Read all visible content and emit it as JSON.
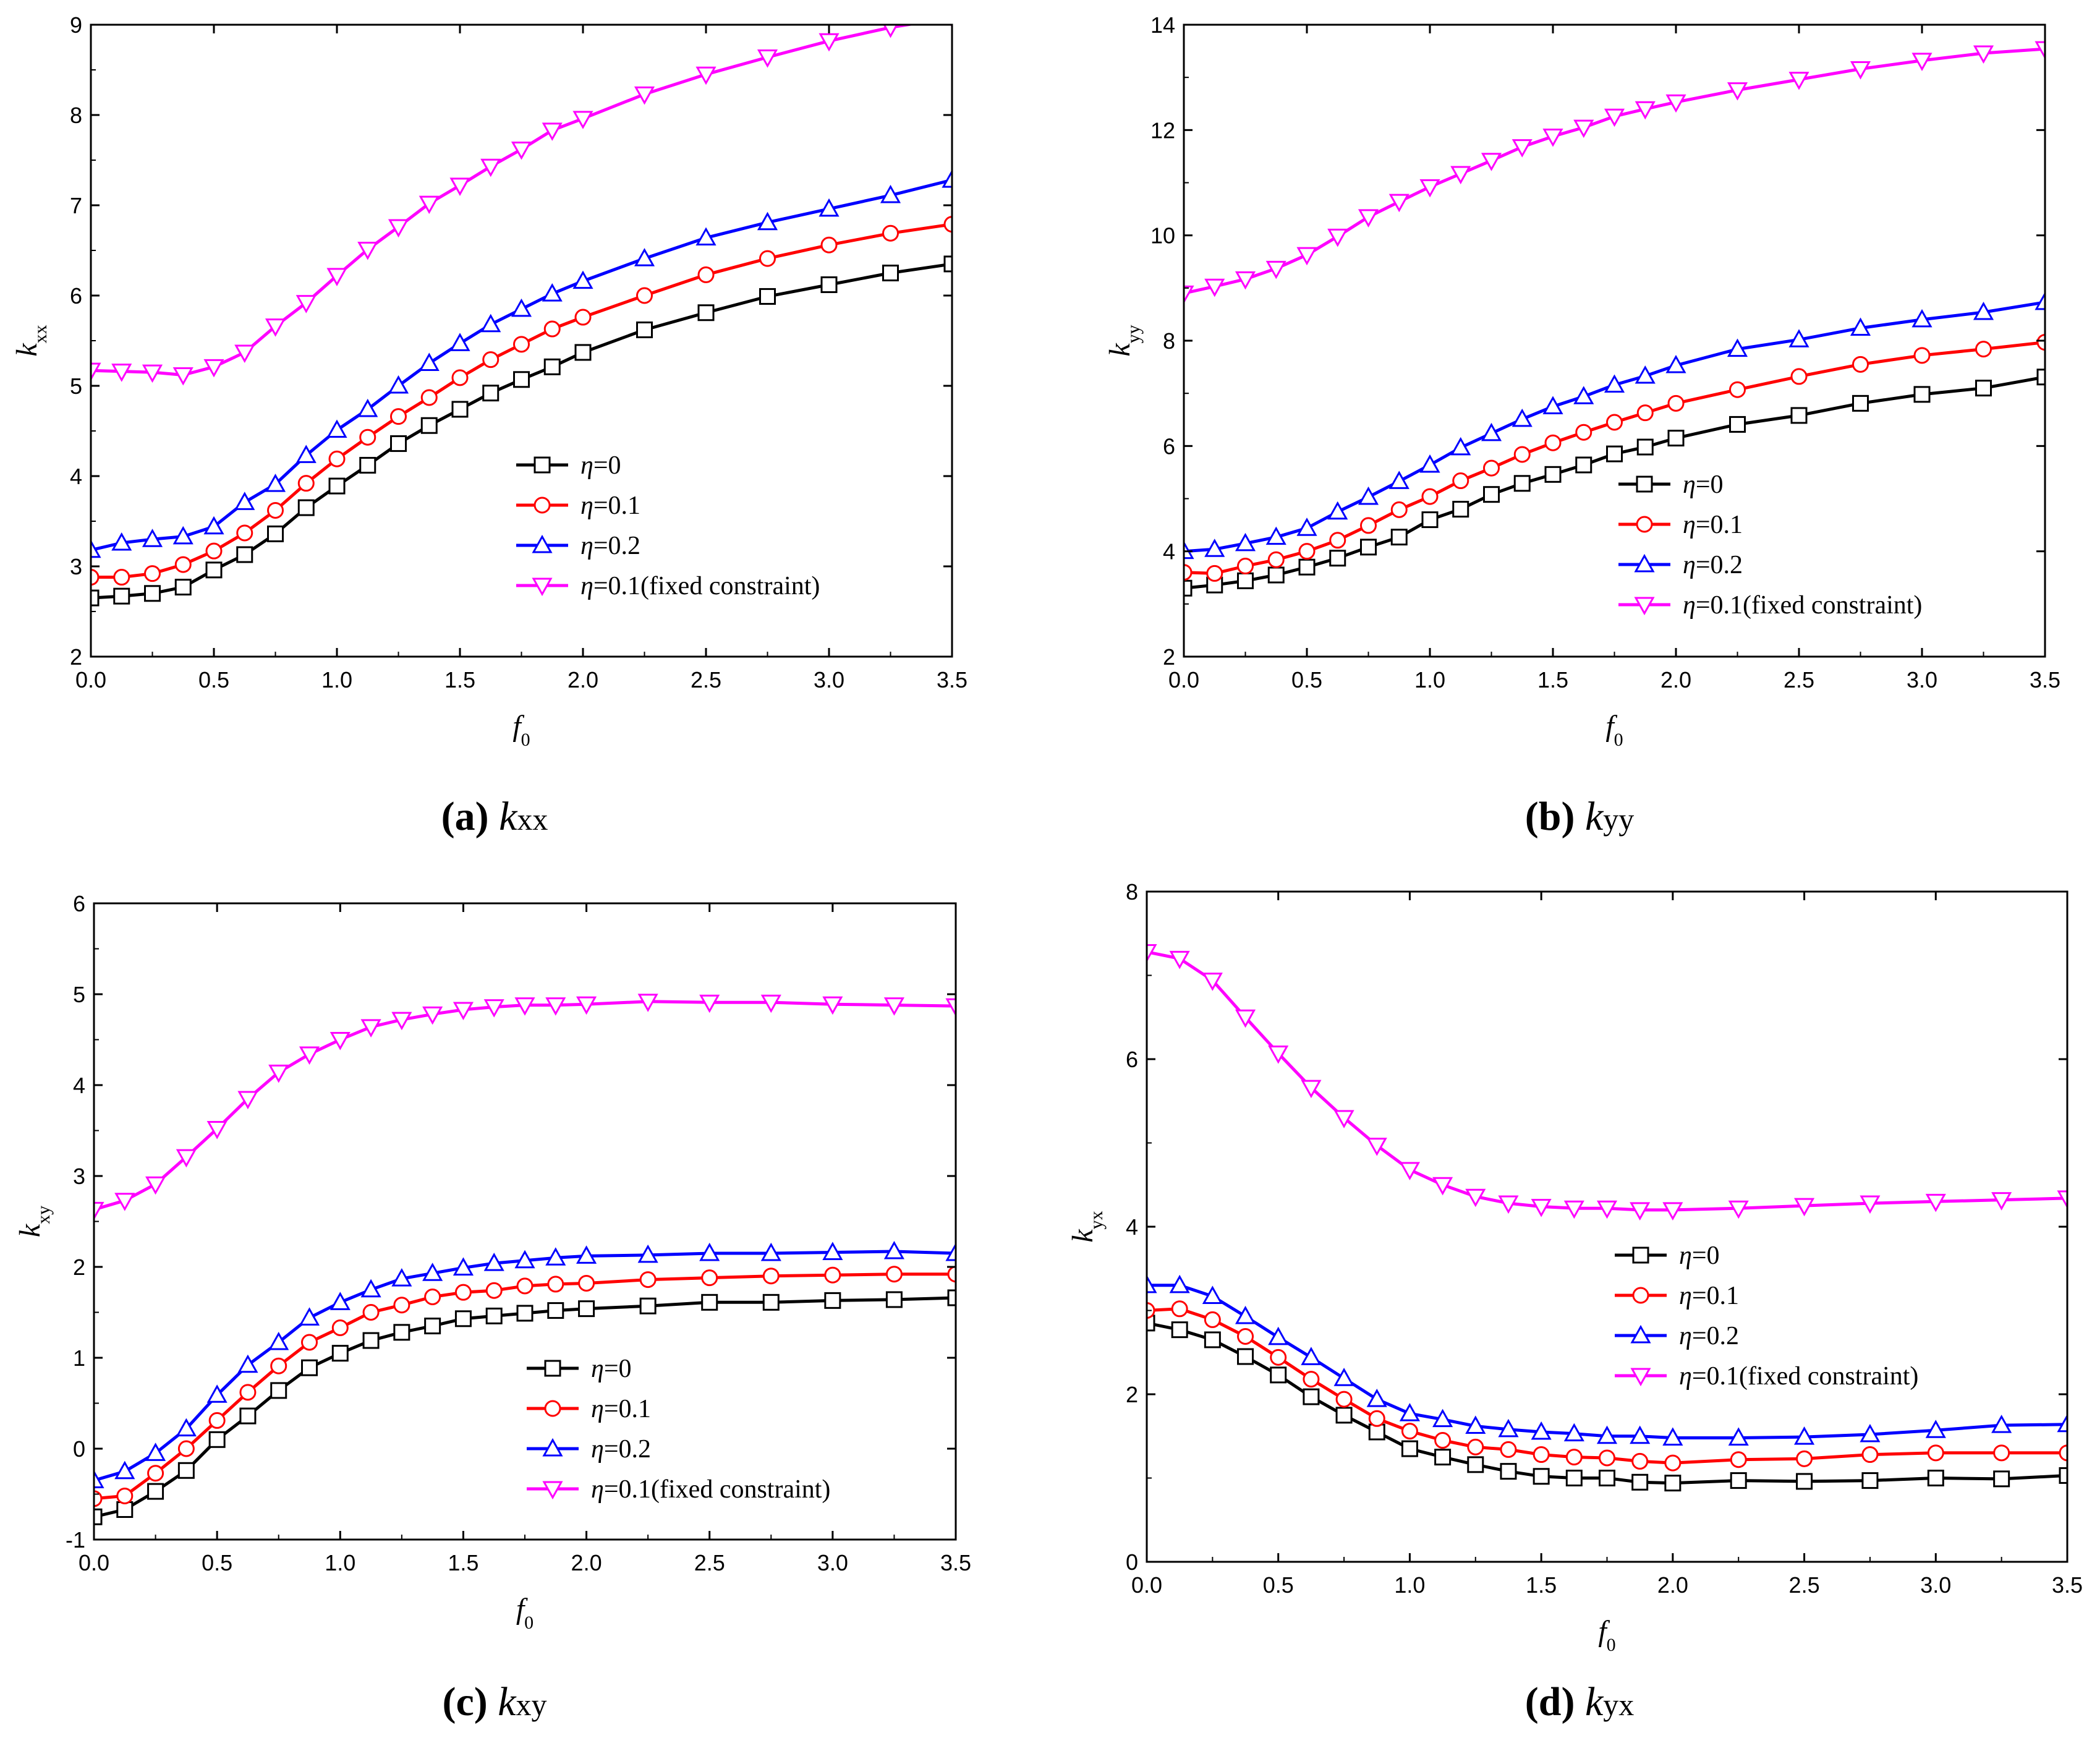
{
  "figure": {
    "legend_symbol": "η",
    "legend_labels": [
      "=0",
      "=0.1",
      "=0.2",
      "=0.1(fixed constraint)"
    ],
    "series_colors": [
      "#000000",
      "#ff0000",
      "#0000ff",
      "#ff00ff"
    ],
    "marker_types": [
      "square",
      "circle",
      "triangle-up",
      "triangle-down"
    ]
  },
  "chart_data": [
    {
      "type": "line",
      "panel": "(a)",
      "caption_letter": "(a)",
      "caption_symbol": "k",
      "caption_sub": "xx",
      "xlabel": "f",
      "xlabel_sub": "0",
      "ylabel": "k",
      "ylabel_sub": "xx",
      "xlim": [
        0,
        3.5
      ],
      "ylim": [
        2,
        9
      ],
      "xticks": [
        0.0,
        0.5,
        1.0,
        1.5,
        2.0,
        2.5,
        3.0,
        3.5
      ],
      "xtick_labels": [
        "0.0",
        "0.5",
        "1.0",
        "1.5",
        "2.0",
        "2.5",
        "3.0",
        "3.5"
      ],
      "yticks": [
        2,
        3,
        4,
        5,
        6,
        7,
        8,
        9
      ],
      "ytick_labels": [
        "2",
        "3",
        "4",
        "5",
        "6",
        "7",
        "8",
        "9"
      ],
      "legend_position": "lower-right",
      "x": [
        0.0,
        0.125,
        0.25,
        0.375,
        0.5,
        0.625,
        0.75,
        0.875,
        1.0,
        1.125,
        1.25,
        1.375,
        1.5,
        1.625,
        1.75,
        1.875,
        2.0,
        2.25,
        2.5,
        2.75,
        3.0,
        3.25,
        3.5
      ],
      "series": [
        {
          "name": "η=0",
          "values": [
            2.65,
            2.67,
            2.7,
            2.77,
            2.96,
            3.13,
            3.36,
            3.65,
            3.89,
            4.12,
            4.36,
            4.56,
            4.74,
            4.92,
            5.07,
            5.21,
            5.37,
            5.62,
            5.81,
            5.99,
            6.12,
            6.25,
            6.35
          ]
        },
        {
          "name": "η=0.1",
          "values": [
            2.88,
            2.88,
            2.92,
            3.02,
            3.17,
            3.37,
            3.62,
            3.92,
            4.19,
            4.43,
            4.66,
            4.87,
            5.09,
            5.29,
            5.46,
            5.63,
            5.76,
            6.0,
            6.23,
            6.41,
            6.56,
            6.69,
            6.79
          ]
        },
        {
          "name": "η=0.2",
          "values": [
            3.18,
            3.26,
            3.3,
            3.33,
            3.44,
            3.71,
            3.91,
            4.23,
            4.51,
            4.74,
            5.0,
            5.25,
            5.47,
            5.68,
            5.85,
            6.02,
            6.16,
            6.41,
            6.64,
            6.81,
            6.96,
            7.11,
            7.28
          ]
        },
        {
          "name": "η=0.1(fixed constraint)",
          "values": [
            5.17,
            5.16,
            5.15,
            5.12,
            5.21,
            5.37,
            5.66,
            5.92,
            6.22,
            6.51,
            6.76,
            7.02,
            7.22,
            7.43,
            7.62,
            7.83,
            7.96,
            8.23,
            8.45,
            8.64,
            8.82,
            8.97,
            9.08
          ]
        }
      ]
    },
    {
      "type": "line",
      "panel": "(b)",
      "caption_letter": "(b)",
      "caption_symbol": "k",
      "caption_sub": "yy",
      "xlabel": "f",
      "xlabel_sub": "0",
      "ylabel": "k",
      "ylabel_sub": "yy",
      "xlim": [
        0,
        3.5
      ],
      "ylim": [
        2,
        14
      ],
      "xticks": [
        0.0,
        0.5,
        1.0,
        1.5,
        2.0,
        2.5,
        3.0,
        3.5
      ],
      "xtick_labels": [
        "0.0",
        "0.5",
        "1.0",
        "1.5",
        "2.0",
        "2.5",
        "3.0",
        "3.5"
      ],
      "yticks": [
        2,
        4,
        6,
        8,
        10,
        12,
        14
      ],
      "ytick_labels": [
        "2",
        "4",
        "6",
        "8",
        "10",
        "12",
        "14"
      ],
      "legend_position": "lower-right",
      "x": [
        0.0,
        0.125,
        0.25,
        0.375,
        0.5,
        0.625,
        0.75,
        0.875,
        1.0,
        1.125,
        1.25,
        1.375,
        1.5,
        1.625,
        1.75,
        1.875,
        2.0,
        2.25,
        2.5,
        2.75,
        3.0,
        3.25,
        3.5
      ],
      "series": [
        {
          "name": "η=0",
          "values": [
            3.3,
            3.36,
            3.44,
            3.55,
            3.7,
            3.87,
            4.08,
            4.27,
            4.6,
            4.8,
            5.08,
            5.29,
            5.46,
            5.64,
            5.85,
            5.98,
            6.15,
            6.41,
            6.58,
            6.81,
            6.98,
            7.1,
            7.31
          ]
        },
        {
          "name": "η=0.1",
          "values": [
            3.6,
            3.58,
            3.72,
            3.84,
            4.0,
            4.21,
            4.49,
            4.79,
            5.04,
            5.34,
            5.58,
            5.84,
            6.06,
            6.26,
            6.45,
            6.63,
            6.81,
            7.07,
            7.32,
            7.55,
            7.72,
            7.84,
            7.97
          ]
        },
        {
          "name": "η=0.2",
          "values": [
            4.0,
            4.04,
            4.15,
            4.27,
            4.44,
            4.75,
            5.03,
            5.33,
            5.64,
            5.97,
            6.24,
            6.51,
            6.75,
            6.94,
            7.16,
            7.33,
            7.53,
            7.84,
            8.02,
            8.24,
            8.4,
            8.54,
            8.73
          ]
        },
        {
          "name": "η=0.1(fixed constraint)",
          "values": [
            8.9,
            9.03,
            9.17,
            9.37,
            9.63,
            9.98,
            10.35,
            10.64,
            10.92,
            11.17,
            11.42,
            11.68,
            11.88,
            12.05,
            12.26,
            12.4,
            12.53,
            12.76,
            12.96,
            13.16,
            13.32,
            13.46,
            13.54
          ]
        }
      ]
    },
    {
      "type": "line",
      "panel": "(c)",
      "caption_letter": "(c)",
      "caption_symbol": "k",
      "caption_sub": "xy",
      "xlabel": "f",
      "xlabel_sub": "0",
      "ylabel": "k",
      "ylabel_sub": "xy",
      "xlim": [
        0,
        3.5
      ],
      "ylim": [
        -1,
        6
      ],
      "xticks": [
        0.0,
        0.5,
        1.0,
        1.5,
        2.0,
        2.5,
        3.0,
        3.5
      ],
      "xtick_labels": [
        "0.0",
        "0.5",
        "1.0",
        "1.5",
        "2.0",
        "2.5",
        "3.0",
        "3.5"
      ],
      "yticks": [
        -1,
        0,
        1,
        2,
        3,
        4,
        5,
        6
      ],
      "ytick_labels": [
        "-1",
        "0",
        "1",
        "2",
        "3",
        "4",
        "5",
        "6"
      ],
      "legend_position": "lower-right",
      "x": [
        0.0,
        0.125,
        0.25,
        0.375,
        0.5,
        0.625,
        0.75,
        0.875,
        1.0,
        1.125,
        1.25,
        1.375,
        1.5,
        1.625,
        1.75,
        1.875,
        2.0,
        2.25,
        2.5,
        2.75,
        3.0,
        3.25,
        3.5
      ],
      "series": [
        {
          "name": "η=0",
          "values": [
            -0.75,
            -0.67,
            -0.47,
            -0.24,
            0.1,
            0.36,
            0.64,
            0.89,
            1.05,
            1.19,
            1.28,
            1.35,
            1.43,
            1.46,
            1.49,
            1.52,
            1.54,
            1.57,
            1.61,
            1.61,
            1.63,
            1.64,
            1.66
          ]
        },
        {
          "name": "η=0.1",
          "values": [
            -0.55,
            -0.52,
            -0.27,
            0.0,
            0.31,
            0.62,
            0.91,
            1.17,
            1.33,
            1.5,
            1.58,
            1.67,
            1.72,
            1.74,
            1.79,
            1.81,
            1.82,
            1.86,
            1.88,
            1.9,
            1.91,
            1.92,
            1.92
          ]
        },
        {
          "name": "η=0.2",
          "values": [
            -0.35,
            -0.25,
            -0.05,
            0.22,
            0.59,
            0.92,
            1.17,
            1.44,
            1.61,
            1.75,
            1.87,
            1.93,
            1.99,
            2.04,
            2.07,
            2.1,
            2.12,
            2.13,
            2.15,
            2.15,
            2.16,
            2.17,
            2.15
          ]
        },
        {
          "name": "η=0.1(fixed constraint)",
          "values": [
            2.63,
            2.73,
            2.91,
            3.21,
            3.52,
            3.85,
            4.14,
            4.34,
            4.5,
            4.64,
            4.72,
            4.78,
            4.83,
            4.86,
            4.88,
            4.88,
            4.89,
            4.92,
            4.91,
            4.91,
            4.89,
            4.88,
            4.87
          ]
        }
      ]
    },
    {
      "type": "line",
      "panel": "(d)",
      "caption_letter": "(d)",
      "caption_symbol": "k",
      "caption_sub": "yx",
      "xlabel": "f",
      "xlabel_sub": "0",
      "ylabel": "k",
      "ylabel_sub": "yx",
      "xlim": [
        0,
        3.5
      ],
      "ylim": [
        0,
        8
      ],
      "xticks": [
        0.0,
        0.5,
        1.0,
        1.5,
        2.0,
        2.5,
        3.0,
        3.5
      ],
      "xtick_labels": [
        "0.0",
        "0.5",
        "1.0",
        "1.5",
        "2.0",
        "2.5",
        "3.0",
        "3.5"
      ],
      "yticks": [
        0,
        2,
        4,
        6,
        8
      ],
      "ytick_labels": [
        "0",
        "2",
        "4",
        "6",
        "8"
      ],
      "legend_position": "center-right",
      "x": [
        0.0,
        0.125,
        0.25,
        0.375,
        0.5,
        0.625,
        0.75,
        0.875,
        1.0,
        1.125,
        1.25,
        1.375,
        1.5,
        1.625,
        1.75,
        1.875,
        2.0,
        2.25,
        2.5,
        2.75,
        3.0,
        3.25,
        3.5
      ],
      "series": [
        {
          "name": "η=0",
          "values": [
            2.85,
            2.77,
            2.65,
            2.45,
            2.23,
            1.97,
            1.75,
            1.55,
            1.35,
            1.25,
            1.16,
            1.08,
            1.02,
            1.0,
            1.0,
            0.95,
            0.94,
            0.97,
            0.96,
            0.97,
            1.0,
            0.99,
            1.03
          ]
        },
        {
          "name": "η=0.1",
          "values": [
            3.0,
            3.02,
            2.89,
            2.69,
            2.44,
            2.18,
            1.94,
            1.71,
            1.56,
            1.45,
            1.37,
            1.34,
            1.28,
            1.25,
            1.24,
            1.2,
            1.18,
            1.22,
            1.23,
            1.28,
            1.3,
            1.3,
            1.3
          ]
        },
        {
          "name": "η=0.2",
          "values": [
            3.3,
            3.3,
            3.17,
            2.93,
            2.68,
            2.44,
            2.19,
            1.94,
            1.77,
            1.7,
            1.62,
            1.58,
            1.55,
            1.53,
            1.5,
            1.5,
            1.48,
            1.48,
            1.49,
            1.52,
            1.57,
            1.63,
            1.64
          ]
        },
        {
          "name": "η=0.1(fixed constraint)",
          "values": [
            7.28,
            7.2,
            6.94,
            6.5,
            6.07,
            5.66,
            5.3,
            4.97,
            4.68,
            4.5,
            4.36,
            4.28,
            4.24,
            4.22,
            4.22,
            4.2,
            4.2,
            4.22,
            4.25,
            4.28,
            4.3,
            4.32,
            4.34
          ]
        }
      ]
    }
  ]
}
